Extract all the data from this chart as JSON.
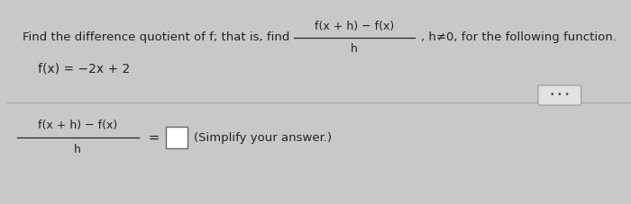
{
  "bg_color": "#c8c8c8",
  "panel_color": "#efefef",
  "text_color": "#222222",
  "title_text": "Find the difference quotient of f; that is, find",
  "frac_num_title": "f(x + h) − f(x)",
  "frac_den_title": "h",
  "tail_text": ", h≠0, for the following function.",
  "function_def": "f(x) = −2x + 2",
  "frac_num_answer": "f(x + h) − f(x)",
  "frac_den_answer": "h",
  "equals_sign": "=",
  "simplify_text": "(Simplify your answer.)",
  "dots_text": "• • •",
  "divider_color": "#aaaaaa",
  "box_color": "#dddddd"
}
